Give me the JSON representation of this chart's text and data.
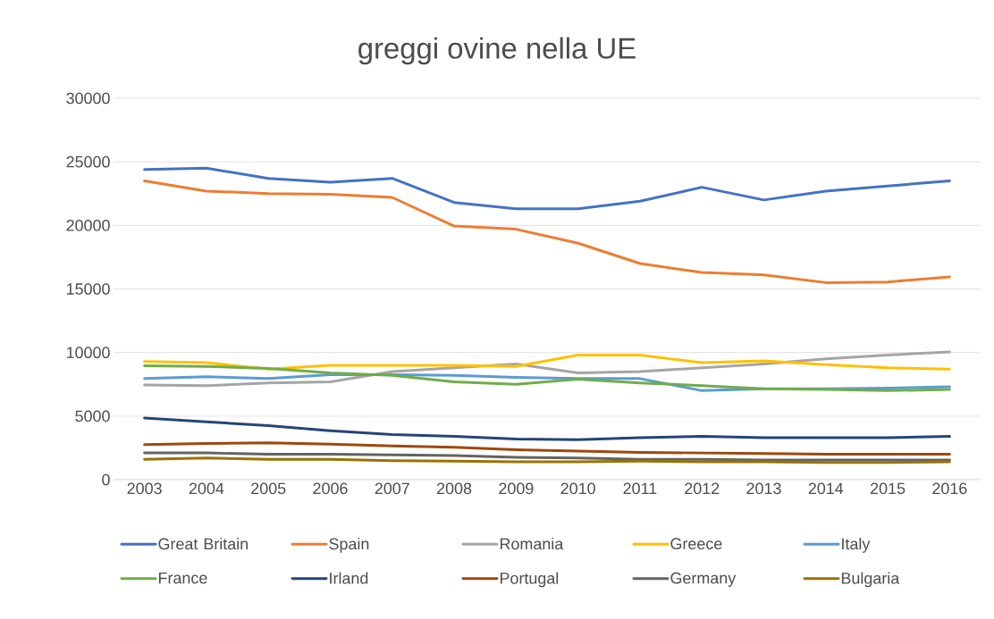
{
  "chart_data": {
    "type": "line",
    "title": "greggi ovine nella UE",
    "categories": [
      "2003",
      "2004",
      "2005",
      "2006",
      "2007",
      "2008",
      "2009",
      "2010",
      "2011",
      "2012",
      "2013",
      "2014",
      "2015",
      "2016"
    ],
    "ylim": [
      0,
      30000
    ],
    "yticks": [
      0,
      5000,
      10000,
      15000,
      20000,
      25000,
      30000
    ],
    "grid": "y",
    "legend": "bottom",
    "marker": "none",
    "line_style": "solid",
    "series": [
      {
        "name": "Great Britain",
        "color": "#4472c4",
        "values": [
          24400,
          24500,
          23700,
          23400,
          23700,
          21800,
          21300,
          21300,
          21900,
          23000,
          22000,
          22700,
          23100,
          23500
        ]
      },
      {
        "name": "Spain",
        "color": "#ed7d31",
        "values": [
          23500,
          22700,
          22500,
          22450,
          22200,
          19950,
          19700,
          18600,
          17000,
          16300,
          16100,
          15500,
          15550,
          15950
        ]
      },
      {
        "name": "Romania",
        "color": "#a5a5a5",
        "values": [
          7450,
          7400,
          7600,
          7700,
          8500,
          8800,
          9100,
          8400,
          8500,
          8800,
          9100,
          9500,
          9800,
          10050
        ]
      },
      {
        "name": "Greece",
        "color": "#ffc000",
        "values": [
          9300,
          9200,
          8700,
          9000,
          9000,
          9000,
          8900,
          9800,
          9800,
          9200,
          9350,
          9050,
          8800,
          8700
        ]
      },
      {
        "name": "Italy",
        "color": "#5b9bd5",
        "values": [
          7950,
          8100,
          7950,
          8250,
          8250,
          8200,
          8050,
          7950,
          7950,
          7000,
          7150,
          7150,
          7200,
          7300
        ]
      },
      {
        "name": "France",
        "color": "#70ad47",
        "values": [
          8950,
          8900,
          8750,
          8400,
          8200,
          7700,
          7500,
          7900,
          7600,
          7400,
          7150,
          7100,
          7000,
          7100
        ]
      },
      {
        "name": "Irland",
        "color": "#264478",
        "values": [
          4850,
          4550,
          4250,
          3850,
          3550,
          3400,
          3200,
          3150,
          3300,
          3400,
          3300,
          3300,
          3300,
          3400
        ]
      },
      {
        "name": "Portugal",
        "color": "#9e480e",
        "values": [
          2750,
          2850,
          2900,
          2800,
          2650,
          2550,
          2350,
          2250,
          2150,
          2100,
          2050,
          2000,
          2000,
          2000
        ]
      },
      {
        "name": "Germany",
        "color": "#636363",
        "values": [
          2100,
          2100,
          2000,
          2000,
          1950,
          1900,
          1750,
          1700,
          1600,
          1600,
          1550,
          1550,
          1550,
          1550
        ]
      },
      {
        "name": "Bulgaria",
        "color": "#997300",
        "values": [
          1600,
          1700,
          1600,
          1600,
          1500,
          1450,
          1400,
          1400,
          1450,
          1400,
          1400,
          1350,
          1350,
          1400
        ]
      }
    ]
  }
}
